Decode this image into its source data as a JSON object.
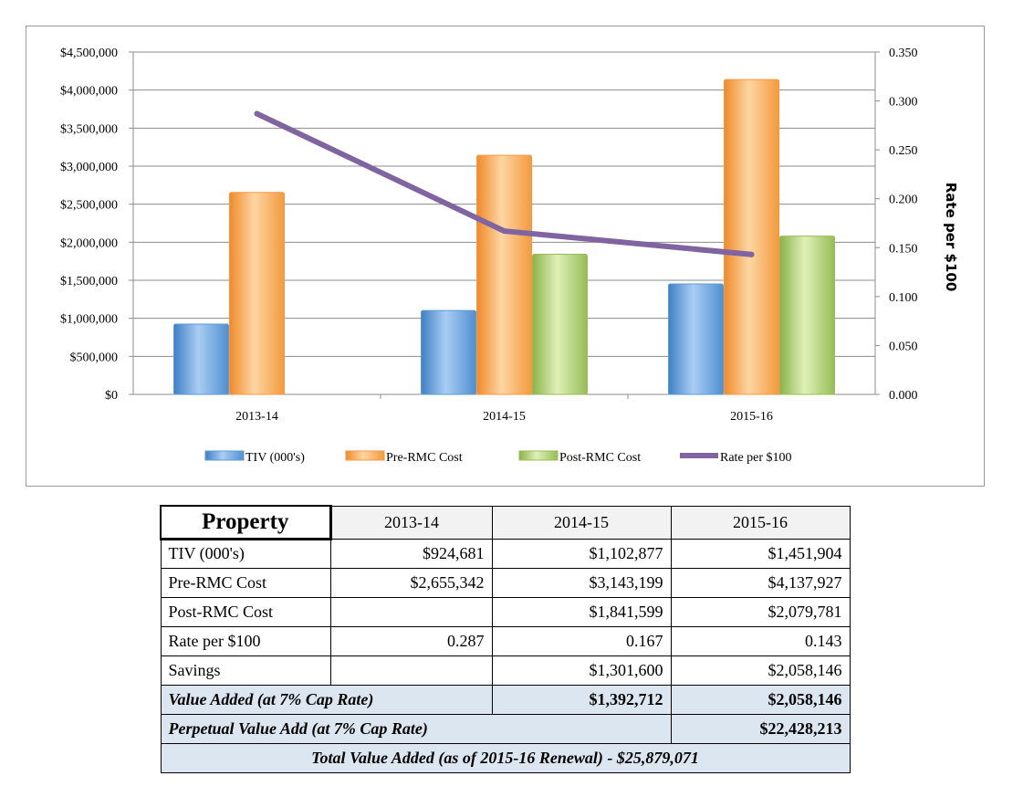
{
  "chart_data": {
    "type": "bar",
    "categories": [
      "2013-14",
      "2014-15",
      "2015-16"
    ],
    "series": [
      {
        "name": "TIV (000's)",
        "type": "bar",
        "axis": "left",
        "values": [
          924681,
          1102877,
          1451904
        ],
        "color": "#5b9bd5"
      },
      {
        "name": "Pre-RMC Cost",
        "type": "bar",
        "axis": "left",
        "values": [
          2655342,
          3143199,
          4137927
        ],
        "color": "#f79646"
      },
      {
        "name": "Post-RMC Cost",
        "type": "bar",
        "axis": "left",
        "values": [
          null,
          1841599,
          2079781
        ],
        "color": "#9bbb59"
      },
      {
        "name": "Rate per $100",
        "type": "line",
        "axis": "right",
        "values": [
          0.287,
          0.167,
          0.143
        ],
        "color": "#8064a2"
      }
    ],
    "left_axis": {
      "ylim": [
        0,
        4500000
      ],
      "ticks": [
        "$0",
        "$500,000",
        "$1,000,000",
        "$1,500,000",
        "$2,000,000",
        "$2,500,000",
        "$3,000,000",
        "$3,500,000",
        "$4,000,000",
        "$4,500,000"
      ]
    },
    "right_axis": {
      "ylim": [
        0,
        0.35
      ],
      "ticks": [
        "0.000",
        "0.050",
        "0.100",
        "0.150",
        "0.200",
        "0.250",
        "0.300",
        "0.350"
      ],
      "label": "Rate per $100"
    },
    "title": "",
    "xlabel": "",
    "grid": true,
    "legend_position": "bottom"
  },
  "table": {
    "header": {
      "corner": "Property",
      "years": [
        "2013-14",
        "2014-15",
        "2015-16"
      ]
    },
    "rows": [
      {
        "label": "TIV (000's)",
        "values": [
          "$924,681",
          "$1,102,877",
          "$1,451,904"
        ]
      },
      {
        "label": "Pre-RMC Cost",
        "values": [
          "$2,655,342",
          "$3,143,199",
          "$4,137,927"
        ]
      },
      {
        "label": "Post-RMC Cost",
        "values": [
          "",
          "$1,841,599",
          "$2,079,781"
        ]
      },
      {
        "label": "Rate per $100",
        "values": [
          "0.287",
          "0.167",
          "0.143"
        ]
      },
      {
        "label": "Savings",
        "values": [
          "",
          "$1,301,600",
          "$2,058,146"
        ]
      }
    ],
    "value_added": {
      "label": "Value Added (at 7% Cap Rate)",
      "values": [
        "$1,392,712",
        "$2,058,146"
      ]
    },
    "perpetual": {
      "label": "Perpetual Value Add (at 7% Cap Rate)",
      "value": "$22,428,213"
    },
    "total": {
      "label": "Total Value Added (as of 2015-16 Renewal) - $25,879,071"
    },
    "shade_color": "#dce6f1"
  }
}
